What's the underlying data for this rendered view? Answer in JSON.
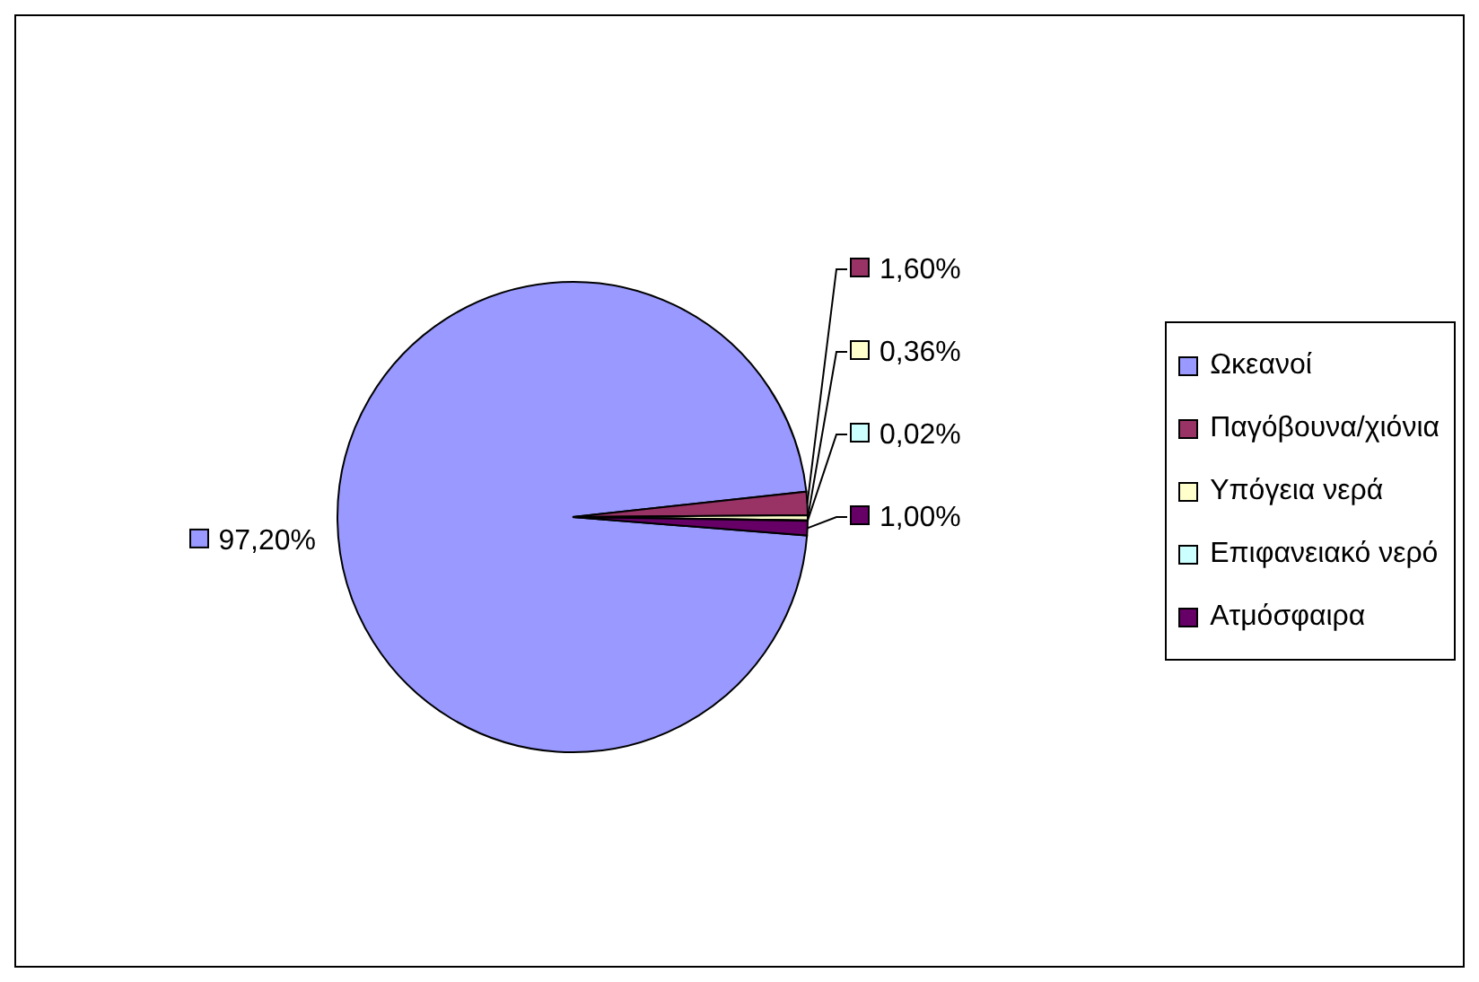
{
  "chart_data": {
    "type": "pie",
    "categories": [
      "Ωκεανοί",
      "Παγόβουνα/χιόνια",
      "Υπόγεια νερά",
      "Επιφανειακό νερό",
      "Ατμόσφαιρα"
    ],
    "values": [
      97.2,
      1.6,
      0.36,
      0.02,
      1.0
    ],
    "value_labels": [
      "97,20%",
      "1,60%",
      "0,36%",
      "0,02%",
      "1,00%"
    ],
    "colors": [
      "#9999ff",
      "#993366",
      "#ffffcc",
      "#ccffff",
      "#660066"
    ],
    "legend": "right"
  }
}
